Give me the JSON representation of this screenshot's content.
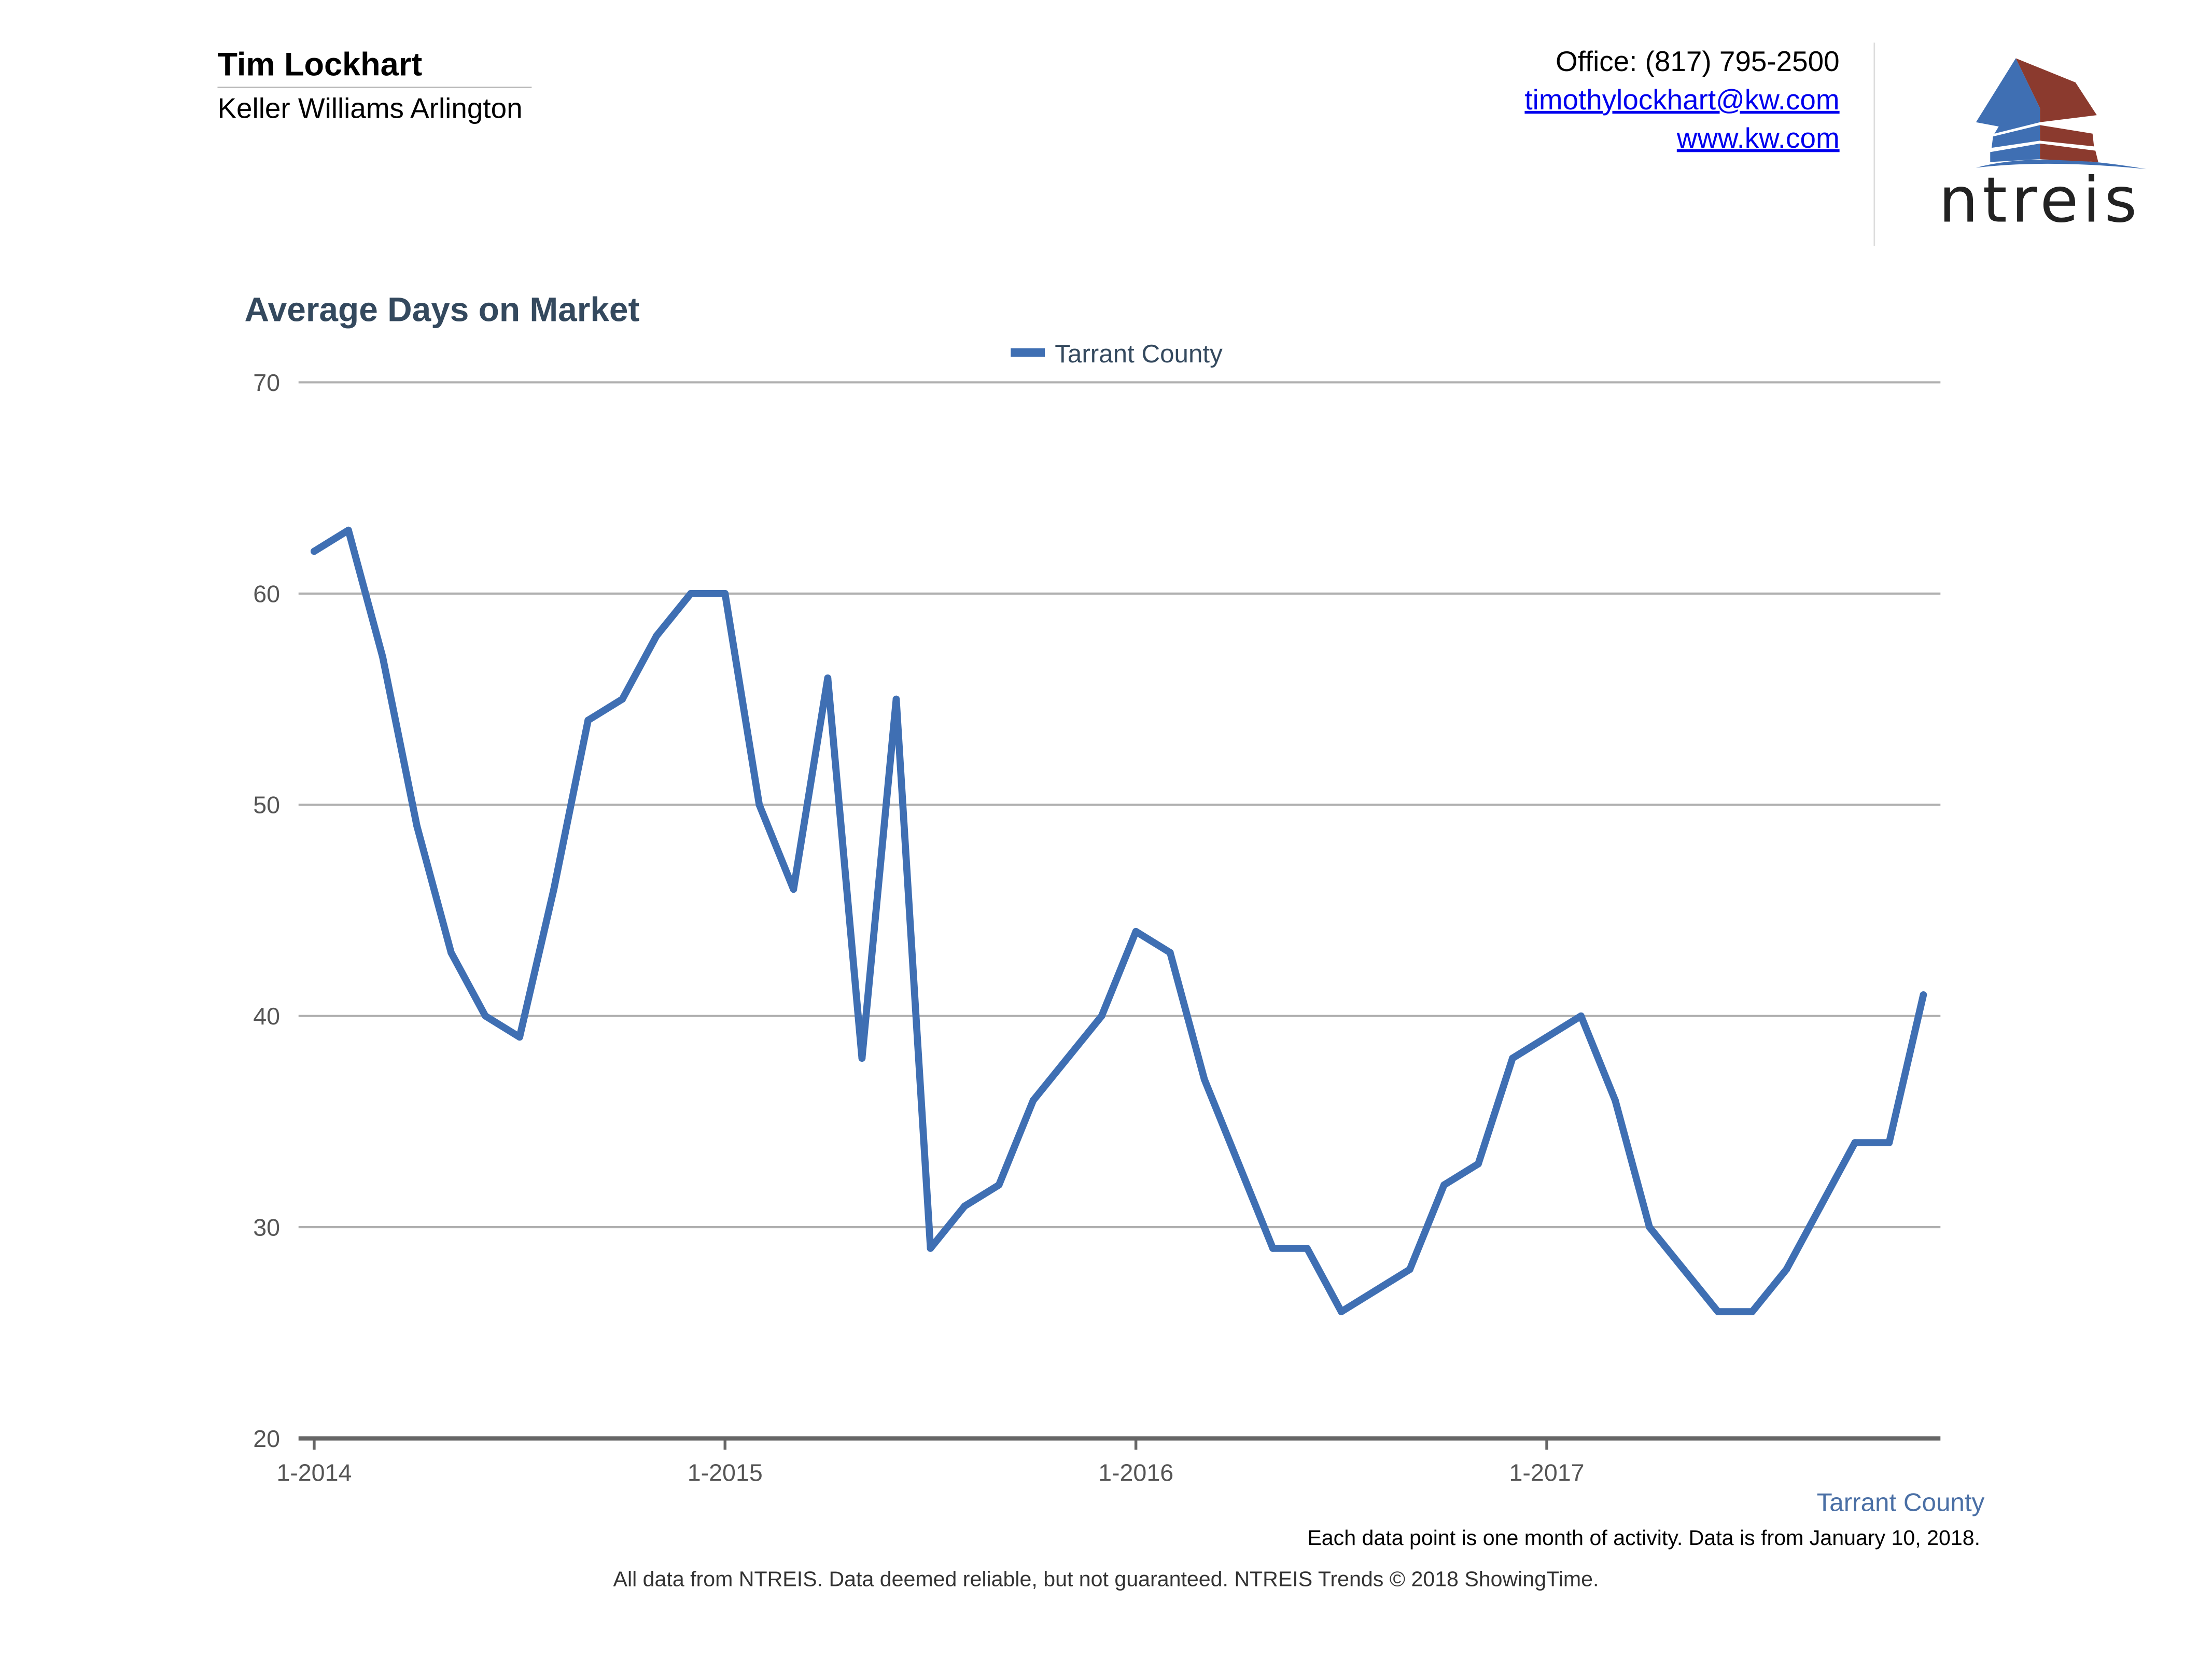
{
  "header": {
    "agent_name": "Tim Lockhart",
    "company": "Keller Williams Arlington",
    "office_phone": "Office: (817) 795-2500",
    "email": "timothylockhart@kw.com",
    "website": "www.kw.com",
    "logo_text": "ntreis"
  },
  "colors": {
    "series": "#3f6fb3",
    "title": "#34495e",
    "logo_blue": "#3f6fb3",
    "logo_red": "#8b3a2e"
  },
  "chart_data": {
    "type": "line",
    "title": "Average Days on Market",
    "xlabel": "",
    "ylabel": "",
    "ylim": [
      20,
      70
    ],
    "yticks": [
      "20",
      "30",
      "40",
      "50",
      "60",
      "70"
    ],
    "xticks": [
      "1-2014",
      "1-2015",
      "1-2016",
      "1-2017"
    ],
    "grid": true,
    "legend": "top-center",
    "x_start": "1-2014",
    "x_end": "12-2017",
    "series": [
      {
        "name": "Tarrant County",
        "values": [
          62,
          63,
          57,
          49,
          43,
          40,
          39,
          46,
          54,
          55,
          58,
          60,
          60,
          50,
          46,
          56,
          38,
          55,
          29,
          31,
          32,
          36,
          38,
          40,
          44,
          43,
          37,
          33,
          29,
          29,
          26,
          27,
          28,
          32,
          33,
          38,
          39,
          40,
          36,
          30,
          28,
          26,
          26,
          28,
          31,
          34,
          34,
          41
        ]
      }
    ]
  },
  "series_label": "Tarrant County",
  "note": "Each data point is one month of activity. Data is from January 10, 2018.",
  "footer": "All data from NTREIS. Data deemed reliable, but not guaranteed. NTREIS Trends © 2018 ShowingTime."
}
